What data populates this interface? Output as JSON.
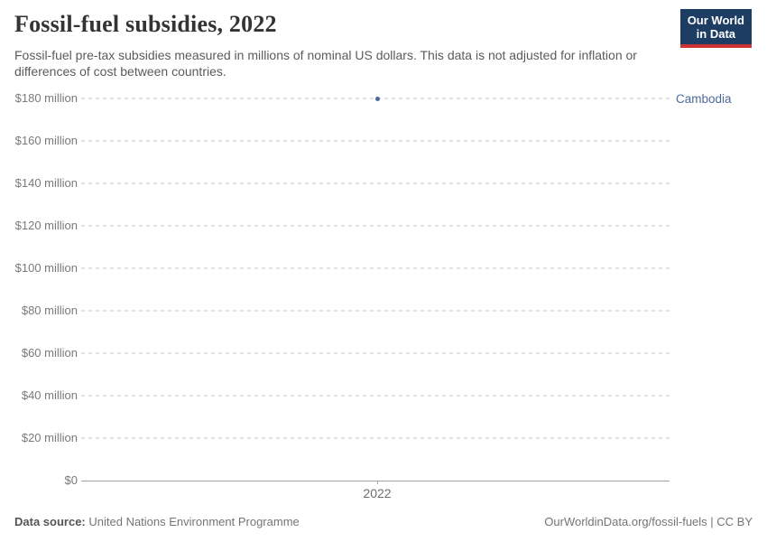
{
  "header": {
    "title": "Fossil-fuel subsidies, 2022",
    "subtitle": "Fossil-fuel pre-tax subsidies measured in millions of nominal US dollars. This data is not adjusted for inflation or differences of cost between countries."
  },
  "logo": {
    "line1": "Our World",
    "line2": "in Data",
    "bg_color": "#1d3d63",
    "bar_color": "#cc3236"
  },
  "chart_data": {
    "type": "scatter",
    "title": "Fossil-fuel subsidies, 2022",
    "x": [
      2022
    ],
    "series": [
      {
        "name": "Cambodia",
        "values": [
          180
        ],
        "color": "#4c6a9c"
      }
    ],
    "xlabel": "",
    "ylabel": "",
    "ylim": [
      0,
      180
    ],
    "yticks": [
      {
        "value": 0,
        "label": "$0"
      },
      {
        "value": 20,
        "label": "$20 million"
      },
      {
        "value": 40,
        "label": "$40 million"
      },
      {
        "value": 60,
        "label": "$60 million"
      },
      {
        "value": 80,
        "label": "$80 million"
      },
      {
        "value": 100,
        "label": "$100 million"
      },
      {
        "value": 120,
        "label": "$120 million"
      },
      {
        "value": 140,
        "label": "$140 million"
      },
      {
        "value": 160,
        "label": "$160 million"
      },
      {
        "value": 180,
        "label": "$180 million"
      }
    ],
    "xticks": [
      {
        "value": 2022,
        "label": "2022"
      }
    ],
    "grid": "horizontal-dashed",
    "legend_position": "right-of-point",
    "entity_label": "Cambodia",
    "entity_label_color": "#4c6a9c"
  },
  "footer": {
    "datasource_label": "Data source:",
    "datasource_value": "United Nations Environment Programme",
    "credit": "OurWorldinData.org/fossil-fuels | CC BY"
  }
}
